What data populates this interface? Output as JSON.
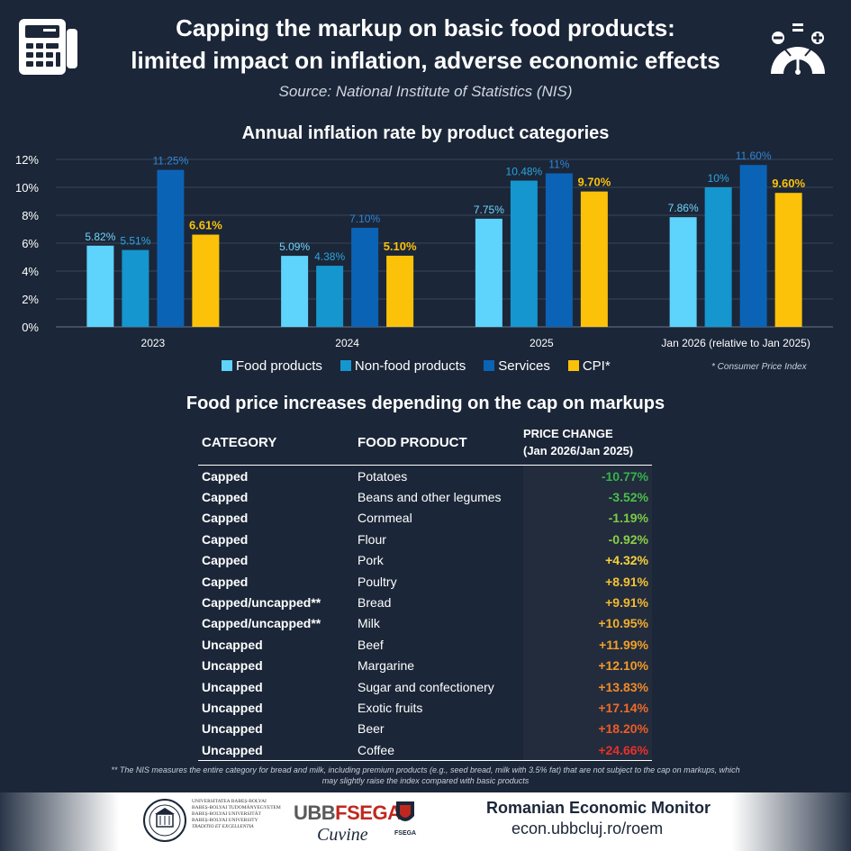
{
  "header": {
    "title_line1": "Capping the markup on basic food products:",
    "title_line2": "limited impact on inflation, adverse economic effects",
    "source": "Source:  National Institute of Statistics (NIS)"
  },
  "chart_data": {
    "type": "bar",
    "title": "Annual inflation rate by product categories",
    "categories": [
      "2023",
      "2024",
      "2025",
      "Jan 2026 (relative to Jan 2025)"
    ],
    "series": [
      {
        "name": "Food products",
        "color": "#5ed3fb",
        "values": [
          5.82,
          5.09,
          7.75,
          7.86
        ],
        "labels": [
          "5.82%",
          "5.09%",
          "7.75%",
          "7.86%"
        ]
      },
      {
        "name": "Non-food products",
        "color": "#1596cf",
        "values": [
          5.51,
          4.38,
          10.48,
          10
        ],
        "labels": [
          "5.51%",
          "4.38%",
          "10.48%",
          "10%"
        ]
      },
      {
        "name": "Services",
        "color": "#0b63b5",
        "values": [
          11.25,
          7.1,
          11,
          11.6
        ],
        "labels": [
          "11.25%",
          "7.10%",
          "11%",
          "11.60%"
        ]
      },
      {
        "name": "CPI*",
        "color": "#fcc20a",
        "values": [
          6.61,
          5.1,
          9.7,
          9.6
        ],
        "labels": [
          "6.61%",
          "5.10%",
          "9.70%",
          "9.60%"
        ]
      }
    ],
    "yticks": [
      "0%",
      "2%",
      "4%",
      "6%",
      "8%",
      "10%",
      "12%"
    ],
    "ylim": [
      0,
      12
    ],
    "xlabel": "",
    "ylabel": "",
    "grid": true,
    "legend": "bottom"
  },
  "legend": {
    "items": [
      "Food products",
      "Non-food products",
      "Services",
      "CPI*"
    ],
    "note": "* Consumer Price Index"
  },
  "table": {
    "title": "Food price increases depending on the cap on markups",
    "headers": {
      "category": "CATEGORY",
      "product": "FOOD PRODUCT",
      "change_line1": "PRICE CHANGE",
      "change_line2": "(Jan 2026/Jan 2025)"
    },
    "rows": [
      {
        "category": "Capped",
        "product": "Potatoes",
        "change": "-10.77%",
        "color": "#35b34a"
      },
      {
        "category": "Capped",
        "product": "Beans and other legumes",
        "change": "-3.52%",
        "color": "#4cbf4a"
      },
      {
        "category": "Capped",
        "product": "Cornmeal",
        "change": "-1.19%",
        "color": "#7ccb46"
      },
      {
        "category": "Capped",
        "product": "Flour",
        "change": "-0.92%",
        "color": "#8ccf45"
      },
      {
        "category": "Capped",
        "product": "Pork",
        "change": "+4.32%",
        "color": "#f6d23a"
      },
      {
        "category": "Capped",
        "product": "Poultry",
        "change": "+8.91%",
        "color": "#f5c332"
      },
      {
        "category": "Capped/uncapped**",
        "product": "Bread",
        "change": "+9.91%",
        "color": "#f5b92f"
      },
      {
        "category": "Capped/uncapped**",
        "product": "Milk",
        "change": "+10.95%",
        "color": "#f4ae2c"
      },
      {
        "category": "Uncapped",
        "product": "Beef",
        "change": "+11.99%",
        "color": "#f3a02a"
      },
      {
        "category": "Uncapped",
        "product": "Margarine",
        "change": "+12.10%",
        "color": "#f39a29"
      },
      {
        "category": "Uncapped",
        "product": "Sugar and confectionery",
        "change": "+13.83%",
        "color": "#f18a28"
      },
      {
        "category": "Uncapped",
        "product": "Exotic fruits",
        "change": "+17.14%",
        "color": "#ee6c27"
      },
      {
        "category": "Uncapped",
        "product": "Beer",
        "change": "+18.20%",
        "color": "#ec5c26"
      },
      {
        "category": "Uncapped",
        "product": "Coffee",
        "change": "+24.66%",
        "color": "#e8302a"
      }
    ],
    "footnote": "** The NIS measures the entire category for bread and milk, including premium products (e.g., seed bread, milk with 3.5% fat) that are not subject to the cap on markups, which may slightly raise the index compared with basic products"
  },
  "footer": {
    "ubb_lines": [
      "UNIVERSITATEA BABEȘ-BOLYAI",
      "BABEȘ-BOLYAI TUDOMÁNYEGYETEM",
      "BABEȘ-BOLYAI UNIVERSITÄT",
      "BABEȘ-BOLYAI UNIVERSITY",
      "TRADITIO ET EXCELLENTIA"
    ],
    "fsega_ubb": "UBB",
    "fsega_name": "FSEGA",
    "fsega_small": "FSEGA",
    "cuvine": "Cuvine",
    "monitor_title": "Romanian Economic Monitor",
    "monitor_url": "econ.ubbcluj.ro/roem"
  },
  "colors": {
    "background": "#1b2638",
    "grid": "#3a4558"
  }
}
